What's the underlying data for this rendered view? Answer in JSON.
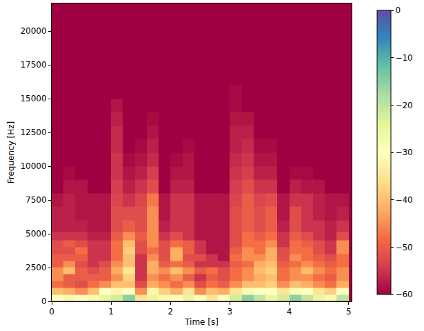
{
  "chart_data": {
    "type": "heatmap",
    "xlabel": "Time [s]",
    "ylabel": "Frequency [Hz]",
    "xlim": [
      0,
      5.05
    ],
    "xticks": [
      0,
      1,
      2,
      3,
      4,
      5
    ],
    "ylim": [
      0,
      22050
    ],
    "yticks": [
      0,
      2500,
      5000,
      7500,
      10000,
      12500,
      15000,
      17500,
      20000
    ],
    "grid": false,
    "x": [
      0.1,
      0.3,
      0.5,
      0.7,
      0.9,
      1.1,
      1.3,
      1.5,
      1.7,
      1.9,
      2.1,
      2.3,
      2.5,
      2.7,
      2.9,
      3.1,
      3.3,
      3.5,
      3.7,
      3.9,
      4.1,
      4.3,
      4.5,
      4.7,
      4.9
    ],
    "y": [
      250,
      750,
      1250,
      1750,
      2250,
      2750,
      3250,
      3750,
      4250,
      4750,
      5500,
      6500,
      7500,
      8500,
      9500,
      10500,
      11500,
      12500,
      13500,
      14500,
      15500
    ],
    "z": [
      [
        -30,
        -28,
        -30,
        -28,
        -25,
        -22,
        -15,
        -35,
        -25,
        -28,
        -30,
        -25,
        -30,
        -35,
        -30,
        -22,
        -15,
        -20,
        -25,
        -22,
        -15,
        -20,
        -25,
        -28,
        -20
      ],
      [
        -40,
        -42,
        -45,
        -40,
        -30,
        -32,
        -30,
        -45,
        -32,
        -38,
        -42,
        -35,
        -45,
        -40,
        -42,
        -35,
        -28,
        -30,
        -30,
        -35,
        -28,
        -30,
        -35,
        -38,
        -30
      ],
      [
        -48,
        -50,
        -52,
        -48,
        -45,
        -40,
        -40,
        -52,
        -42,
        -45,
        -48,
        -45,
        -52,
        -48,
        -50,
        -45,
        -40,
        -40,
        -38,
        -45,
        -40,
        -42,
        -45,
        -48,
        -42
      ],
      [
        -45,
        -50,
        -50,
        -50,
        -50,
        -45,
        -38,
        -55,
        -45,
        -48,
        -45,
        -50,
        -55,
        -50,
        -52,
        -48,
        -45,
        -42,
        -40,
        -48,
        -45,
        -45,
        -48,
        -50,
        -45
      ],
      [
        -45,
        -40,
        -50,
        -52,
        -50,
        -42,
        -35,
        -55,
        -42,
        -45,
        -40,
        -45,
        -50,
        -48,
        -52,
        -48,
        -45,
        -40,
        -38,
        -48,
        -45,
        -40,
        -45,
        -48,
        -45
      ],
      [
        -50,
        -45,
        -52,
        -55,
        -52,
        -45,
        -40,
        -55,
        -42,
        -50,
        -48,
        -50,
        -55,
        -55,
        -55,
        -50,
        -48,
        -42,
        -40,
        -50,
        -48,
        -45,
        -48,
        -50,
        -48
      ],
      [
        -50,
        -50,
        -50,
        -55,
        -55,
        -48,
        -40,
        -55,
        -45,
        -52,
        -42,
        -52,
        -52,
        -55,
        -58,
        -48,
        -45,
        -45,
        -42,
        -52,
        -45,
        -48,
        -50,
        -52,
        -48
      ],
      [
        -52,
        -52,
        -48,
        -55,
        -55,
        -48,
        -38,
        -52,
        -48,
        -52,
        -42,
        -50,
        -55,
        -58,
        -58,
        -50,
        -45,
        -48,
        -42,
        -52,
        -48,
        -48,
        -52,
        -55,
        -45
      ],
      [
        -52,
        -50,
        -52,
        -55,
        -55,
        -48,
        -40,
        -52,
        -45,
        -52,
        -48,
        -50,
        -55,
        -58,
        -58,
        -52,
        -48,
        -48,
        -45,
        -55,
        -48,
        -50,
        -52,
        -55,
        -45
      ],
      [
        -55,
        -55,
        -55,
        -57,
        -57,
        -50,
        -45,
        -50,
        -45,
        -55,
        -52,
        -55,
        -58,
        -58,
        -58,
        -52,
        -48,
        -50,
        -48,
        -55,
        -50,
        -52,
        -55,
        -57,
        -52
      ],
      [
        -57,
        -57,
        -57,
        -58,
        -58,
        -52,
        -50,
        -52,
        -45,
        -57,
        -55,
        -55,
        -58,
        -58,
        -58,
        -52,
        -50,
        -52,
        -50,
        -57,
        -52,
        -55,
        -55,
        -57,
        -55
      ],
      [
        -57,
        -57,
        -58,
        -58,
        -58,
        -52,
        -52,
        -52,
        -45,
        -58,
        -55,
        -55,
        -58,
        -58,
        -58,
        -52,
        -50,
        -52,
        -50,
        -58,
        -52,
        -55,
        -57,
        -58,
        -57
      ],
      [
        -58,
        -57,
        -58,
        -58,
        -58,
        -53,
        -55,
        -53,
        -47,
        -58,
        -55,
        -55,
        -58,
        -58,
        -58,
        -53,
        -50,
        -53,
        -52,
        -58,
        -55,
        -55,
        -57,
        -58,
        -58
      ],
      [
        -60,
        -58,
        -58,
        -60,
        -60,
        -54,
        -57,
        -55,
        -52,
        -60,
        -57,
        -57,
        -60,
        -60,
        -60,
        -54,
        -52,
        -55,
        -55,
        -60,
        -57,
        -58,
        -58,
        -60,
        -60
      ],
      [
        -60,
        -59,
        -60,
        -60,
        -60,
        -55,
        -58,
        -57,
        -54,
        -60,
        -58,
        -58,
        -60,
        -60,
        -60,
        -55,
        -54,
        -57,
        -57,
        -60,
        -59,
        -59,
        -60,
        -60,
        -60
      ],
      [
        -60,
        -60,
        -60,
        -60,
        -60,
        -55,
        -59,
        -58,
        -56,
        -60,
        -59,
        -58,
        -60,
        -60,
        -60,
        -56,
        -55,
        -58,
        -58,
        -60,
        -60,
        -60,
        -60,
        -60,
        -60
      ],
      [
        -60,
        -60,
        -60,
        -60,
        -60,
        -56,
        -60,
        -59,
        -57,
        -60,
        -60,
        -59,
        -60,
        -60,
        -60,
        -57,
        -56,
        -59,
        -59,
        -60,
        -60,
        -60,
        -60,
        -60,
        -60
      ],
      [
        -60,
        -60,
        -60,
        -60,
        -60,
        -56,
        -60,
        -60,
        -58,
        -60,
        -60,
        -60,
        -60,
        -60,
        -60,
        -57,
        -57,
        -60,
        -60,
        -60,
        -60,
        -60,
        -60,
        -60,
        -60
      ],
      [
        -60,
        -60,
        -60,
        -60,
        -60,
        -57,
        -60,
        -60,
        -59,
        -60,
        -60,
        -60,
        -60,
        -60,
        -60,
        -58,
        -58,
        -60,
        -60,
        -60,
        -60,
        -60,
        -60,
        -60,
        -60
      ],
      [
        -60,
        -60,
        -60,
        -60,
        -60,
        -58,
        -60,
        -60,
        -60,
        -60,
        -60,
        -60,
        -60,
        -60,
        -60,
        -59,
        -60,
        -60,
        -60,
        -60,
        -60,
        -60,
        -60,
        -60,
        -60
      ],
      [
        -60,
        -60,
        -60,
        -60,
        -60,
        -60,
        -60,
        -60,
        -60,
        -60,
        -60,
        -60,
        -60,
        -60,
        -60,
        -59,
        -60,
        -60,
        -60,
        -60,
        -60,
        -60,
        -60,
        -60,
        -60
      ]
    ],
    "zlim": [
      -60,
      0
    ],
    "zticks": [
      0,
      {
        "value": -10,
        "label": "−10"
      },
      {
        "value": -20,
        "label": "−20"
      },
      {
        "value": -30,
        "label": "−30"
      },
      {
        "value": -40,
        "label": "−40"
      },
      {
        "value": -50,
        "label": "−50"
      },
      {
        "value": -60,
        "label": "−60"
      }
    ]
  }
}
